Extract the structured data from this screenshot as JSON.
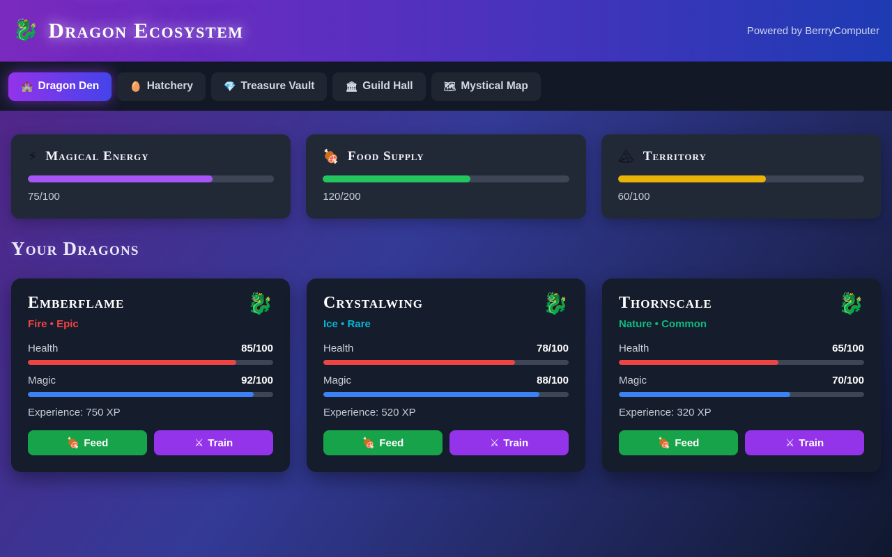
{
  "header": {
    "icon": "🐉",
    "title": "Dragon Ecosystem",
    "powered_by": "Powered by BerrryComputer"
  },
  "nav": {
    "tabs": [
      {
        "icon": "🏰",
        "label": "Dragon Den",
        "active": true
      },
      {
        "icon": "🥚",
        "label": "Hatchery",
        "active": false
      },
      {
        "icon": "💎",
        "label": "Treasure Vault",
        "active": false
      },
      {
        "icon": "🏛",
        "label": "Guild Hall",
        "active": false
      },
      {
        "icon": "🗺",
        "label": "Mystical Map",
        "active": false
      }
    ]
  },
  "resources": [
    {
      "icon": "⚡",
      "name": "Magical Energy",
      "value": "75/100",
      "current": 75,
      "max": 100,
      "percent": 75,
      "color": "#a855f7"
    },
    {
      "icon": "🍖",
      "name": "Food Supply",
      "value": "120/200",
      "current": 120,
      "max": 200,
      "percent": 60,
      "color": "#22c55e"
    },
    {
      "icon": "🏔",
      "name": "Territory",
      "value": "60/100",
      "current": 60,
      "max": 100,
      "percent": 60,
      "color": "#eab308"
    }
  ],
  "section_title": "Your Dragons",
  "stat_colors": {
    "health": "#ef4444",
    "magic": "#3b82f6"
  },
  "buttons": {
    "feed_icon": "🍖",
    "feed_label": "Feed",
    "train_icon": "⚔",
    "train_label": "Train"
  },
  "labels": {
    "health": "Health",
    "magic": "Magic"
  },
  "dragons": [
    {
      "name": "Emberflame",
      "icon": "🐉",
      "type_display": "Fire • Epic",
      "type_color": "#ef4444",
      "health_value": "85/100",
      "health_percent": 85,
      "magic_value": "92/100",
      "magic_percent": 92,
      "experience": "Experience: 750 XP"
    },
    {
      "name": "Crystalwing",
      "icon": "🐉",
      "type_display": "Ice • Rare",
      "type_color": "#06b6d4",
      "health_value": "78/100",
      "health_percent": 78,
      "magic_value": "88/100",
      "magic_percent": 88,
      "experience": "Experience: 520 XP"
    },
    {
      "name": "Thornscale",
      "icon": "🐉",
      "type_display": "Nature • Common",
      "type_color": "#10b981",
      "health_value": "65/100",
      "health_percent": 65,
      "magic_value": "70/100",
      "magic_percent": 70,
      "experience": "Experience: 320 XP"
    }
  ]
}
